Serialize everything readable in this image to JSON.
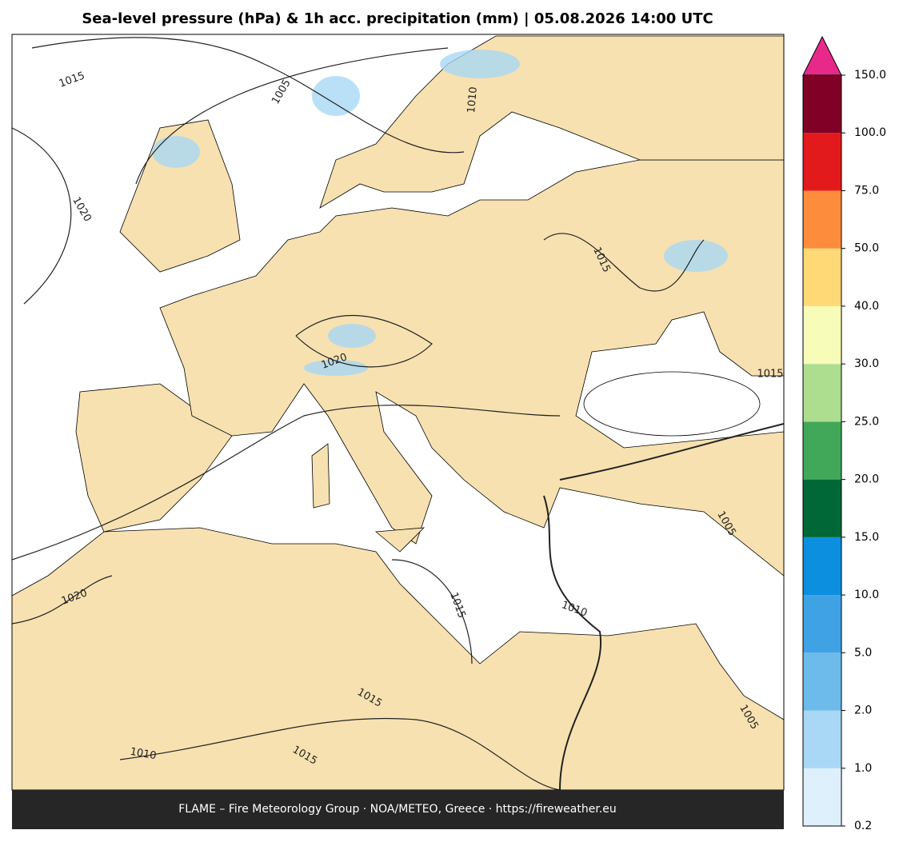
{
  "chart_data": {
    "type": "map",
    "title": "Sea-level pressure (hPa) & 1h acc. precipitation (mm)  |  05.08.2026 14:00 UTC",
    "footer": "FLAME – Fire Meteorology Group · NOA/METEO, Greece · https://fireweather.eu",
    "contour_labels": [
      1015,
      1005,
      1010,
      1020,
      1015,
      1020,
      1015,
      1005,
      1020,
      1015,
      1010,
      1015,
      1005,
      1010,
      1015
    ],
    "colorbar": {
      "ticks": [
        0.2,
        {
          "value": 1,
          "label": "1.0"
        },
        {
          "value": 2,
          "label": "2.0"
        },
        {
          "value": 5,
          "label": "5.0"
        },
        {
          "value": 10,
          "label": "10.0"
        },
        {
          "value": 15,
          "label": "15.0"
        },
        {
          "value": 20,
          "label": "20.0"
        },
        {
          "value": 25,
          "label": "25.0"
        },
        {
          "value": 30,
          "label": "30.0"
        },
        {
          "value": 40,
          "label": "40.0"
        },
        {
          "value": 50,
          "label": "50.0"
        },
        {
          "value": 75,
          "label": "75.0"
        },
        {
          "value": 100,
          "label": "100.0"
        },
        {
          "value": 150,
          "label": "150.0"
        }
      ],
      "colors": [
        "#ddf0fc",
        "#a8d8f5",
        "#6cbbea",
        "#3fa2e4",
        "#0d8fe0",
        "#006837",
        "#41a85a",
        "#addd8e",
        "#f7fcb9",
        "#fed976",
        "#fd8d3c",
        "#e31a1c",
        "#800026"
      ],
      "extend_color": "#e7298a"
    }
  }
}
